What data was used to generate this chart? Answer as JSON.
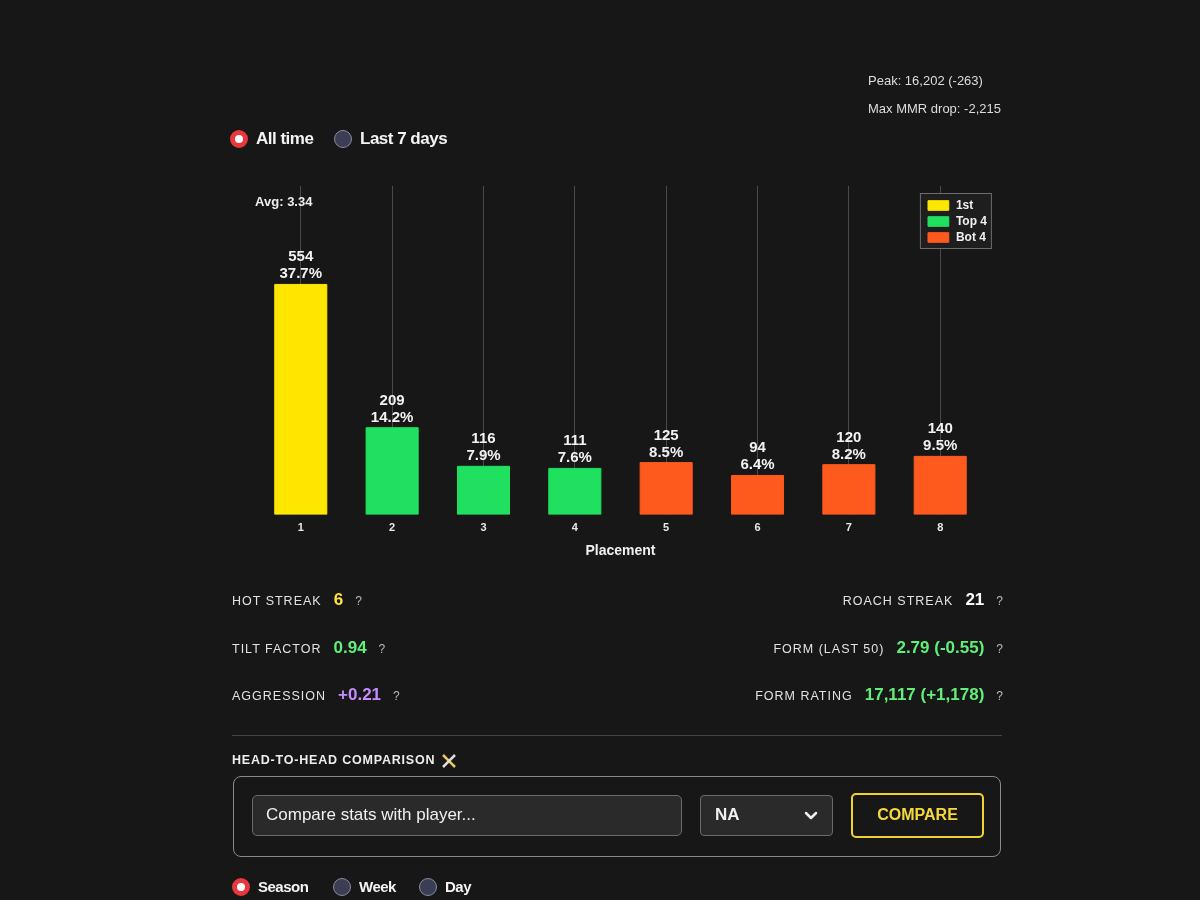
{
  "chart_data": {
    "type": "bar",
    "xlabel": "Placement",
    "categories": [
      "1",
      "2",
      "3",
      "4",
      "5",
      "6",
      "7",
      "8"
    ],
    "series": [
      {
        "name": "1st",
        "color": "#ffe600",
        "values": [
          554,
          null,
          null,
          null,
          null,
          null,
          null,
          null
        ],
        "value_labels": [
          "554\n37.7%",
          null,
          null,
          null,
          null,
          null,
          null,
          null
        ]
      },
      {
        "name": "Top 4",
        "color": "#20e060",
        "values": [
          null,
          209,
          116,
          111,
          null,
          null,
          null,
          null
        ],
        "value_labels": [
          null,
          "209\n14.2%",
          "116\n7.9%",
          "111\n7.6%",
          null,
          null,
          null,
          null
        ]
      },
      {
        "name": "Bot 4",
        "color": "#ff5a1e",
        "values": [
          null,
          null,
          null,
          null,
          125,
          94,
          120,
          140
        ],
        "value_labels": [
          null,
          null,
          null,
          null,
          "125\n8.5%",
          "94\n6.4%",
          "120\n8.2%",
          "140\n9.5%"
        ]
      }
    ],
    "legend": "top right",
    "grid": "x",
    "annotations": [
      "Peak: 16,202 (-263)",
      "Max MMR drop: -2,215",
      "All time",
      "Last 7 days",
      "Avg: 3.34",
      "HOT STREAK",
      "6",
      "?",
      "ROACH STREAK",
      "21",
      "?",
      "TILT FACTOR",
      "0.94",
      "?",
      "FORM (LAST 50)",
      "2.79 (-0.55)",
      "?",
      "AGGRESSION",
      "+0.21",
      "?",
      "FORM RATING",
      "17,117 (+1,178)",
      "?",
      "HEAD-TO-HEAD COMPARISON",
      "Compare stats with player...",
      "NA",
      "COMPARE",
      "Season",
      "Week",
      "Day"
    ]
  }
}
